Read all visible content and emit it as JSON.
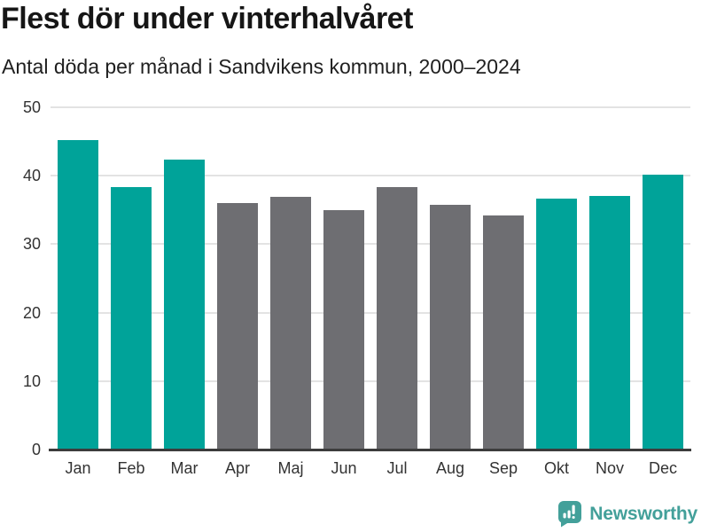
{
  "header": {
    "title": "Flest dör under vinterhalvåret",
    "subtitle": "Antal döda per månad i Sandvikens kommun, 2000–2024"
  },
  "chart_data": {
    "type": "bar",
    "categories": [
      "Jan",
      "Feb",
      "Mar",
      "Apr",
      "Maj",
      "Jun",
      "Jul",
      "Aug",
      "Sep",
      "Okt",
      "Nov",
      "Dec"
    ],
    "values": [
      45.2,
      38.3,
      42.3,
      36.0,
      36.9,
      35.0,
      38.3,
      35.8,
      34.2,
      36.6,
      37.0,
      40.1
    ],
    "title": "Flest dör under vinterhalvåret",
    "subtitle": "Antal döda per månad i Sandvikens kommun, 2000–2024",
    "xlabel": "",
    "ylabel": "",
    "ylim": [
      0,
      50
    ],
    "yticks": [
      0,
      10,
      20,
      30,
      40,
      50
    ],
    "grid": "horizontal",
    "legend": "none",
    "bar_groups": [
      "winter",
      "winter",
      "winter",
      "summer",
      "summer",
      "summer",
      "summer",
      "summer",
      "summer",
      "winter",
      "winter",
      "winter"
    ]
  },
  "colors": {
    "winter_bar": "#00a399",
    "summer_bar": "#6e6e72",
    "gridline": "#e3e3e3",
    "axis_line": "#3c3c3c",
    "title_text": "#161616",
    "tick_text": "#333333",
    "brand_teal": "#43a09a"
  },
  "footer": {
    "brand": "Newsworthy"
  }
}
